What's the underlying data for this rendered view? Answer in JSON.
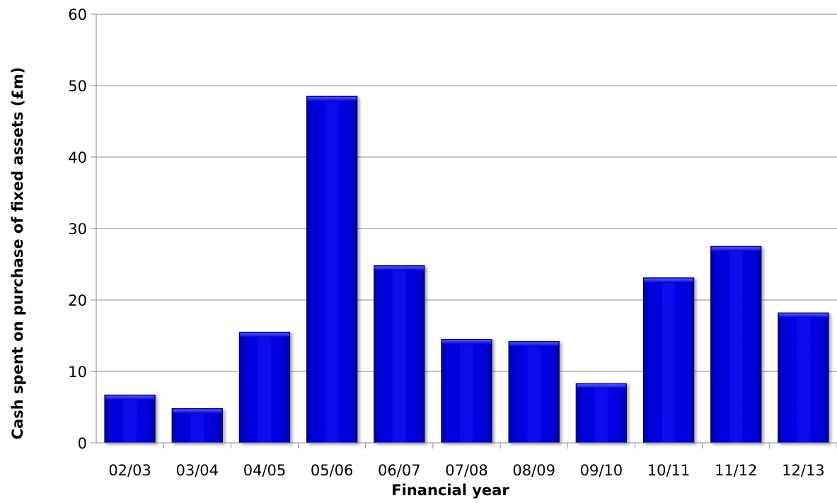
{
  "chart_data": {
    "type": "bar",
    "title": "",
    "xlabel": "Financial year",
    "ylabel": "Cash spent on purchase of fixed assets (£m)",
    "categories": [
      "02/03",
      "03/04",
      "04/05",
      "05/06",
      "06/07",
      "07/08",
      "08/09",
      "09/10",
      "10/11",
      "11/12",
      "12/13"
    ],
    "values": [
      6.7,
      4.8,
      15.5,
      48.5,
      24.8,
      14.5,
      14.2,
      8.3,
      23.1,
      27.5,
      18.2
    ],
    "ylim": [
      0,
      60
    ],
    "yticks": [
      0,
      10,
      20,
      30,
      40,
      50,
      60
    ],
    "grid": true,
    "legend": "none",
    "bar_color": "#0000dd"
  }
}
